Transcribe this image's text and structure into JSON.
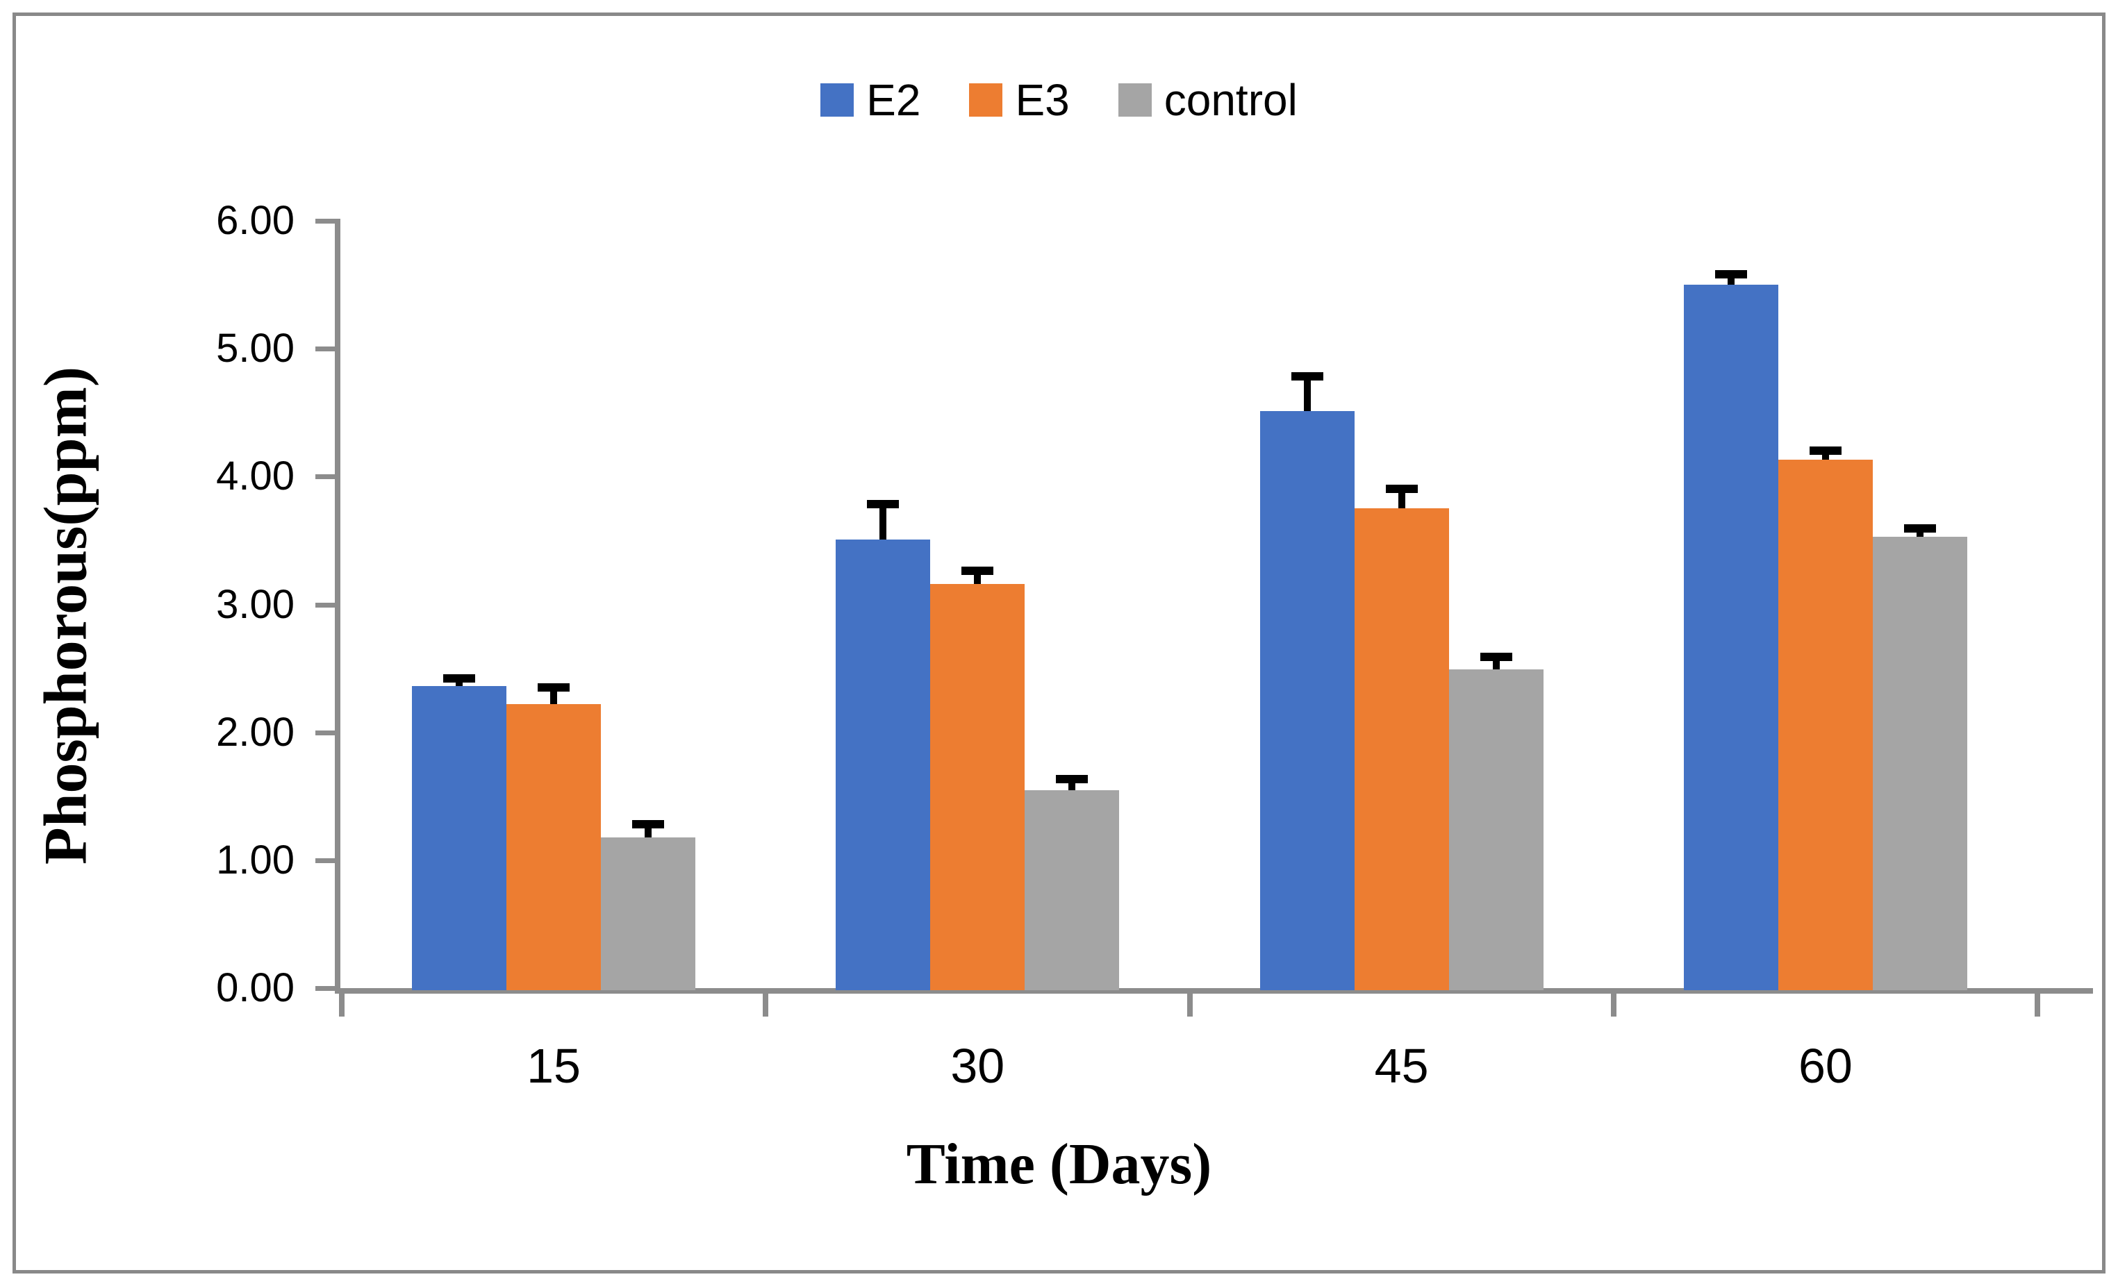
{
  "chart_data": {
    "type": "bar",
    "variant": "grouped-vertical-with-error-bars",
    "categories": [
      "15",
      "30",
      "45",
      "60"
    ],
    "series": [
      {
        "name": "E2",
        "color": "#4472C4",
        "values": [
          2.36,
          3.51,
          4.51,
          5.5
        ],
        "errors_plus": [
          0.03,
          0.24,
          0.24,
          0.05
        ]
      },
      {
        "name": "E3",
        "color": "#ED7D31",
        "values": [
          2.22,
          3.16,
          3.75,
          4.13
        ],
        "errors_plus": [
          0.1,
          0.07,
          0.12,
          0.04
        ]
      },
      {
        "name": "control",
        "color": "#A5A5A5",
        "values": [
          1.18,
          1.55,
          2.49,
          3.53
        ],
        "errors_plus": [
          0.07,
          0.05,
          0.07,
          0.03
        ]
      }
    ],
    "xlabel": "Time (Days)",
    "ylabel": "Phosphorous(ppm)",
    "ylim": [
      0,
      6
    ],
    "ytick_step": 1,
    "ytick_labels": [
      "0.00",
      "1.00",
      "2.00",
      "3.00",
      "4.00",
      "5.00",
      "6.00"
    ],
    "grid": false,
    "legend_position": "top-center",
    "error_bar_color": "#000000",
    "axis_color": "#8C8C8C",
    "frame_border_color": "#898989",
    "background_color": "#FFFFFF"
  }
}
